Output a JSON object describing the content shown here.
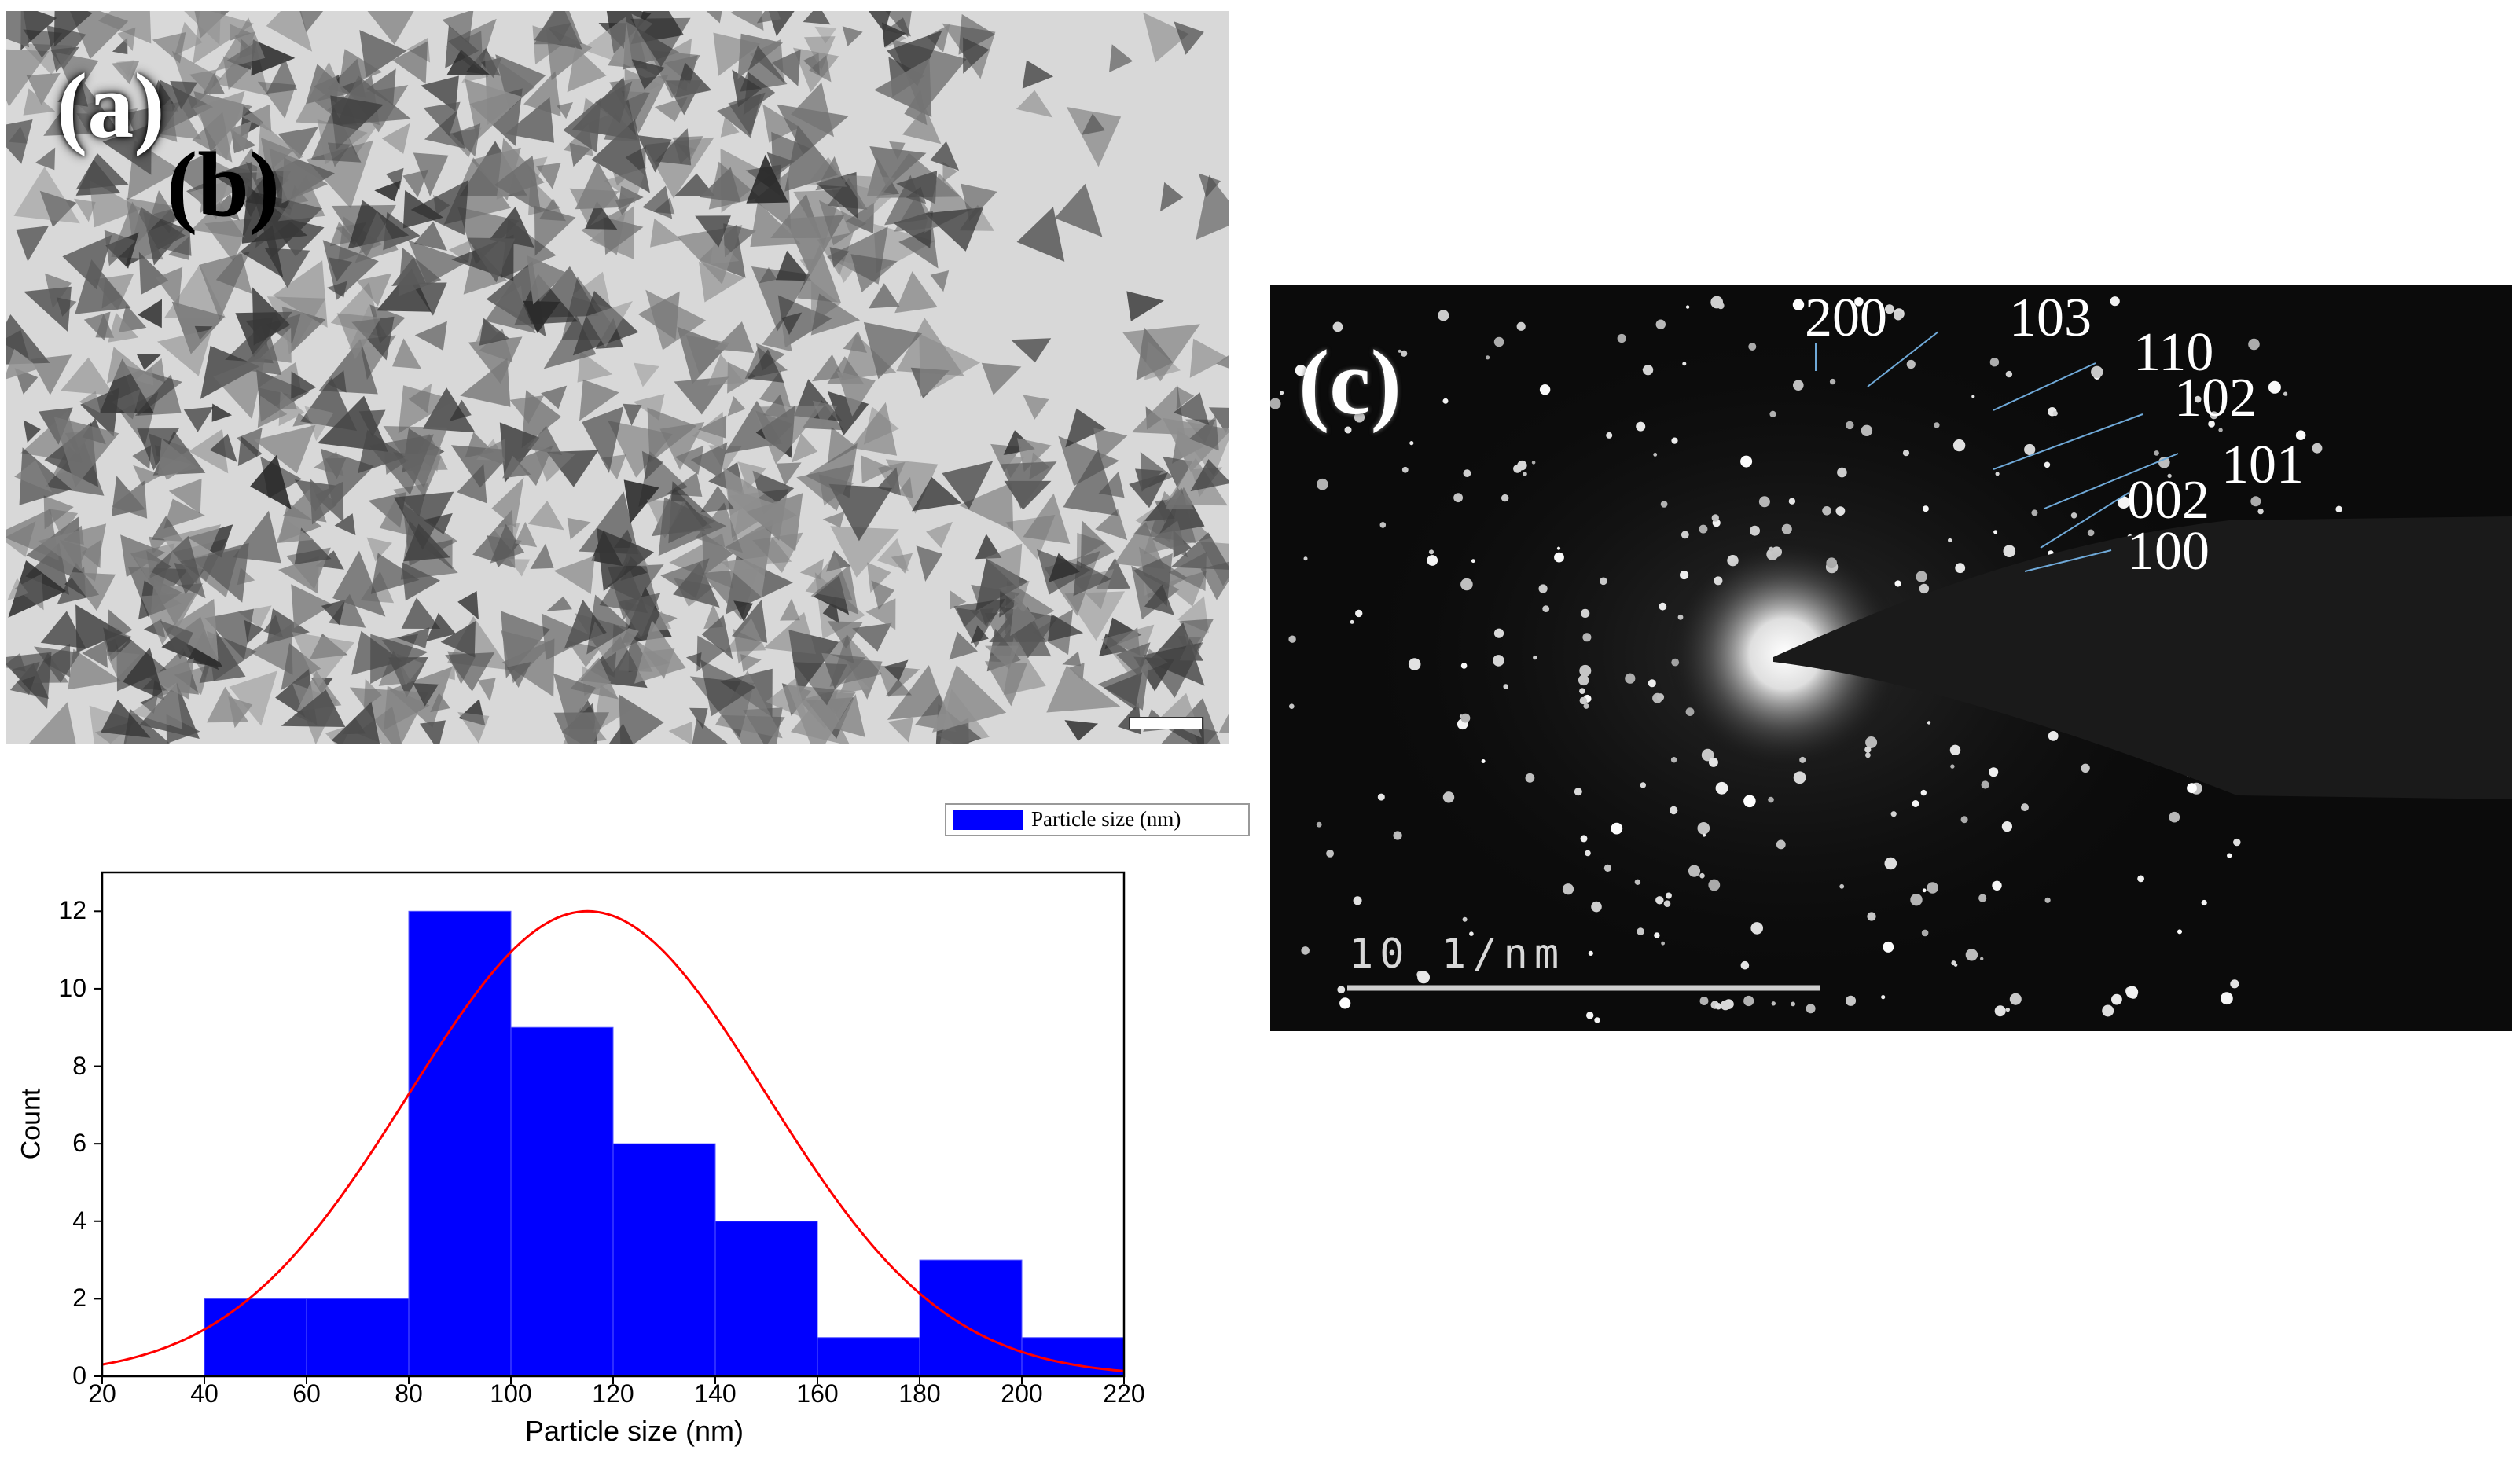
{
  "panels": {
    "a": {
      "label": "(a)"
    },
    "b": {
      "label": "(b)"
    },
    "c": {
      "label": "(c)",
      "indices": [
        "200",
        "103",
        "110",
        "102",
        "101",
        "002",
        "100"
      ],
      "scale_bar": "10 1/nm"
    }
  },
  "chart_data": {
    "type": "bar",
    "subtype": "histogram",
    "bins": [
      [
        40,
        60
      ],
      [
        60,
        80
      ],
      [
        80,
        100
      ],
      [
        100,
        120
      ],
      [
        120,
        140
      ],
      [
        140,
        160
      ],
      [
        160,
        180
      ],
      [
        180,
        200
      ],
      [
        200,
        220
      ]
    ],
    "values": [
      2,
      2,
      12,
      9,
      6,
      4,
      1,
      3,
      1
    ],
    "series": [
      {
        "name": "Particle size (nm)",
        "values": [
          2,
          2,
          12,
          9,
          6,
          4,
          1,
          3,
          1
        ]
      }
    ],
    "fit": {
      "type": "gaussian",
      "peak_x": 115,
      "peak_y": 12,
      "sigma": 35
    },
    "xlabel": "Particle size (nm)",
    "ylabel": "Count",
    "xlim": [
      20,
      220
    ],
    "ylim": [
      0,
      13
    ],
    "xticks": [
      "20",
      "40",
      "60",
      "80",
      "100",
      "120",
      "140",
      "160",
      "180",
      "200",
      "220"
    ],
    "yticks": [
      "0",
      "2",
      "4",
      "6",
      "8",
      "10",
      "12"
    ],
    "legend_position": "top-right",
    "grid": false,
    "colors": {
      "bars": "#0000ff",
      "fit": "#ff0000"
    }
  }
}
